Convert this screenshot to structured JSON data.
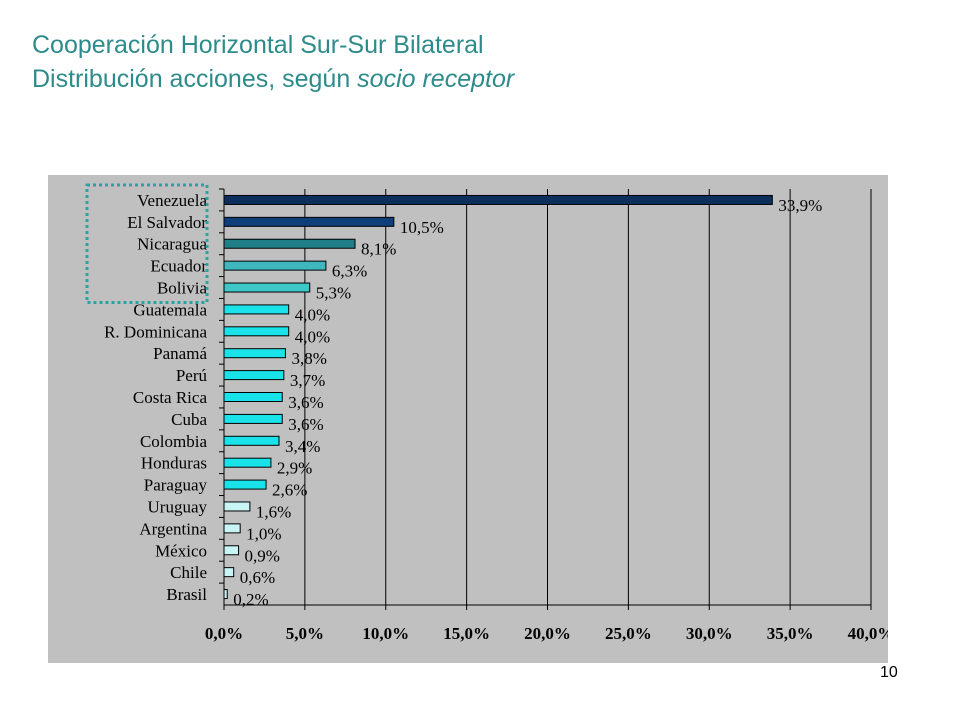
{
  "slide": {
    "title_line1": "Cooperación Horizontal Sur-Sur Bilateral",
    "title_line2_plain": "Distribución acciones, según ",
    "title_line2_italic": "socio receptor",
    "page_number": "10",
    "title_color": "#2e8b8b"
  },
  "chart_data": {
    "type": "bar",
    "orientation": "horizontal",
    "title": "",
    "xlabel": "",
    "ylabel": "",
    "categories": [
      "Venezuela",
      "El Salvador",
      "Nicaragua",
      "Ecuador",
      "Bolivia",
      "Guatemala",
      "R. Dominicana",
      "Panamá",
      "Perú",
      "Costa Rica",
      "Cuba",
      "Colombia",
      "Honduras",
      "Paraguay",
      "Uruguay",
      "Argentina",
      "México",
      "Chile",
      "Brasil"
    ],
    "values": [
      33.9,
      10.5,
      8.1,
      6.3,
      5.3,
      4.0,
      4.0,
      3.8,
      3.7,
      3.6,
      3.6,
      3.4,
      2.9,
      2.6,
      1.6,
      1.0,
      0.9,
      0.6,
      0.2
    ],
    "value_labels": [
      "33,9%",
      "10,5%",
      "8,1%",
      "6,3%",
      "5,3%",
      "4,0%",
      "4,0%",
      "3,8%",
      "3,7%",
      "3,6%",
      "3,6%",
      "3,4%",
      "2,9%",
      "2,6%",
      "1,6%",
      "1,0%",
      "0,9%",
      "0,6%",
      "0,2%"
    ],
    "bar_colors": [
      "#0b2e5c",
      "#0f3f7a",
      "#1f7f86",
      "#3fb7bf",
      "#3fc6c6",
      "#19e3e8",
      "#19e3e8",
      "#19e3e8",
      "#19e3e8",
      "#19e3e8",
      "#19e3e8",
      "#19e3e8",
      "#19e3e8",
      "#19e3e8",
      "#c9f4f6",
      "#c9f4f6",
      "#c9f4f6",
      "#c9f4f6",
      "#c9f4f6"
    ],
    "x_ticks": [
      0,
      5,
      10,
      15,
      20,
      25,
      30,
      35,
      40
    ],
    "x_tick_labels": [
      "0,0%",
      "5,0%",
      "10,0%",
      "15,0%",
      "20,0%",
      "25,0%",
      "30,0%",
      "35,0%",
      "40,0%"
    ],
    "xlim": [
      0,
      40
    ],
    "grid": "vertical",
    "background": "#c0c0c0",
    "highlight": {
      "categories": [
        "Venezuela",
        "El Salvador",
        "Nicaragua",
        "Ecuador",
        "Bolivia"
      ],
      "style": "dotted-box",
      "color": "#2aa3a3"
    }
  }
}
